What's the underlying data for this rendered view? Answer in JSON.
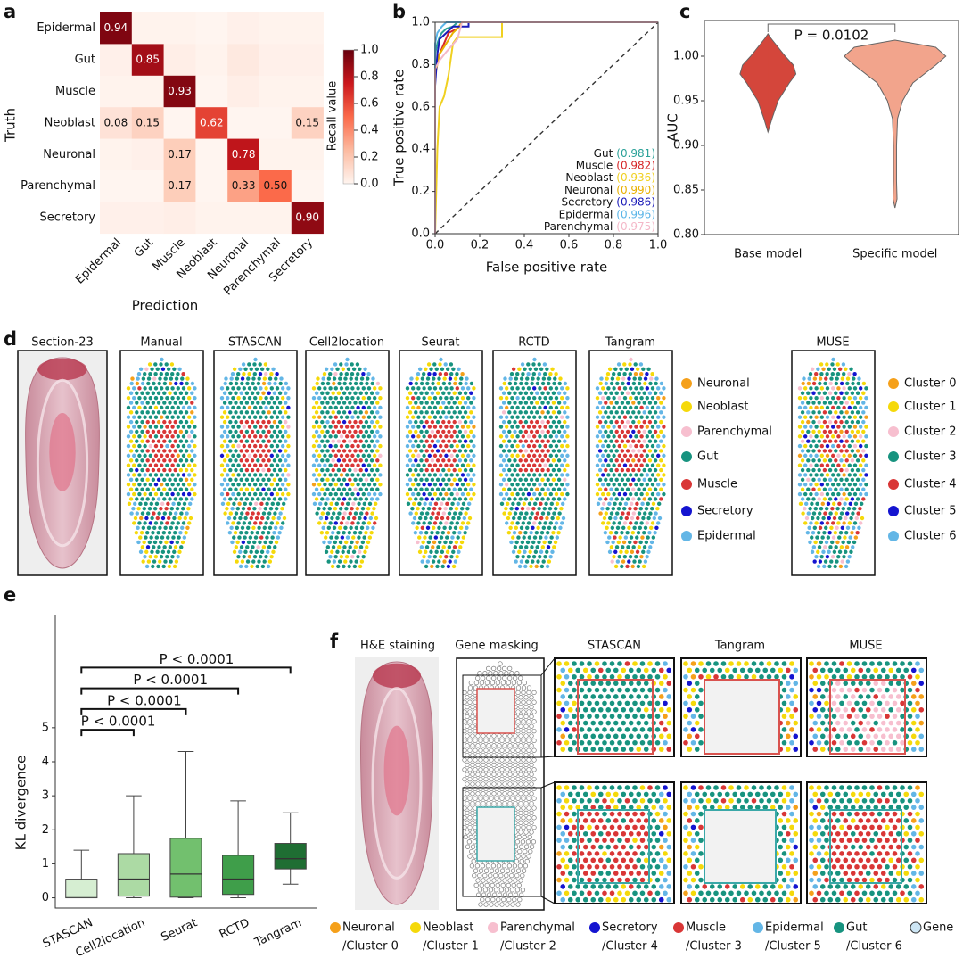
{
  "chart_data": [
    {
      "type": "heatmap",
      "panel": "a",
      "rows": [
        "Epidermal",
        "Gut",
        "Muscle",
        "Neoblast",
        "Neuronal",
        "Parenchymal",
        "Secretory"
      ],
      "columns": [
        "Epidermal",
        "Gut",
        "Muscle",
        "Neoblast",
        "Neuronal",
        "Parenchymal",
        "Secretory"
      ],
      "values": [
        [
          0.94,
          0.01,
          0.01,
          0,
          0.02,
          0.01,
          0.01
        ],
        [
          0.02,
          0.85,
          0.03,
          0.01,
          0.05,
          0.02,
          0.02
        ],
        [
          0.01,
          0.01,
          0.93,
          0,
          0.03,
          0.01,
          0.01
        ],
        [
          0.08,
          0.15,
          0,
          0.62,
          0,
          0,
          0.15
        ],
        [
          0.01,
          0.02,
          0.17,
          0,
          0.78,
          0.01,
          0.01
        ],
        [
          0,
          0,
          0.17,
          0,
          0.33,
          0.5,
          0
        ],
        [
          0.02,
          0.02,
          0.03,
          0.01,
          0.01,
          0.01,
          0.9
        ]
      ],
      "value_labels": [
        [
          "0.94",
          null,
          null,
          null,
          null,
          null,
          null
        ],
        [
          null,
          "0.85",
          null,
          null,
          null,
          null,
          null
        ],
        [
          null,
          null,
          "0.93",
          null,
          null,
          null,
          null
        ],
        [
          "0.08",
          "0.15",
          null,
          "0.62",
          null,
          null,
          "0.15"
        ],
        [
          null,
          null,
          "0.17",
          null,
          "0.78",
          null,
          null
        ],
        [
          null,
          null,
          "0.17",
          null,
          "0.33",
          "0.50",
          null
        ],
        [
          null,
          null,
          null,
          null,
          null,
          null,
          "0.90"
        ]
      ],
      "xlabel": "Prediction",
      "ylabel": "Truth",
      "colorbar_label": "Recall value",
      "clim": [
        0,
        1
      ],
      "colormap": [
        "#fff5f0",
        "#fcbba1",
        "#fb6a4a",
        "#cb181d",
        "#67000d"
      ],
      "cticks": [
        {
          "value": 0,
          "label": "0.0"
        },
        0.2,
        0.4,
        0.6,
        0.8,
        {
          "value": 1,
          "label": "1.0"
        }
      ]
    },
    {
      "type": "roc",
      "panel": "b",
      "xlabel": "False positive rate",
      "ylabel": "True positive rate",
      "xlim": [
        0,
        1
      ],
      "ylim": [
        0,
        1
      ],
      "xticks": [
        {
          "value": 0,
          "label": "0.0"
        },
        0.2,
        0.4,
        0.6,
        0.8,
        {
          "value": 1,
          "label": "1.0"
        }
      ],
      "yticks": [
        {
          "value": 0,
          "label": "0.0"
        },
        0.2,
        0.4,
        0.6,
        0.8,
        {
          "value": 1,
          "label": "1.0"
        }
      ],
      "legend": "lower right",
      "series": [
        {
          "name": "Gut",
          "auc": 0.981,
          "auc_label": "(0.981)",
          "color": "#2aa198",
          "x": [
            0,
            0,
            0.01,
            0.02,
            0.03,
            0.05,
            0.08,
            0.1,
            1
          ],
          "y": [
            0,
            0.85,
            0.9,
            0.93,
            0.95,
            0.97,
            0.98,
            1,
            1
          ]
        },
        {
          "name": "Muscle",
          "auc": 0.982,
          "auc_label": "(0.982)",
          "color": "#d62728",
          "x": [
            0,
            0,
            0.02,
            0.04,
            0.06,
            0.1,
            0.12,
            1
          ],
          "y": [
            0,
            0.8,
            0.85,
            0.9,
            0.95,
            0.97,
            1,
            1
          ]
        },
        {
          "name": "Neoblast",
          "auc": 0.936,
          "auc_label": "(0.936)",
          "color": "#f0d020",
          "x": [
            0,
            0.005,
            0.01,
            0.02,
            0.04,
            0.06,
            0.08,
            0.1,
            0.3,
            0.3,
            1
          ],
          "y": [
            0,
            0.2,
            0.4,
            0.6,
            0.65,
            0.75,
            0.9,
            0.93,
            0.93,
            1,
            1
          ]
        },
        {
          "name": "Neuronal",
          "auc": 0.99,
          "auc_label": "(0.990)",
          "color": "#e8b000",
          "x": [
            0,
            0,
            0.02,
            0.05,
            0.08,
            0.1,
            0.12,
            1
          ],
          "y": [
            0,
            0.75,
            0.85,
            0.9,
            0.95,
            0.97,
            1,
            1
          ]
        },
        {
          "name": "Secretory",
          "auc": 0.986,
          "auc_label": "(0.986)",
          "color": "#1a1ab8",
          "x": [
            0,
            0,
            0.01,
            0.02,
            0.05,
            0.08,
            0.15,
            0.15,
            1
          ],
          "y": [
            0,
            0.7,
            0.85,
            0.92,
            0.95,
            0.98,
            0.98,
            1,
            1
          ]
        },
        {
          "name": "Epidermal",
          "auc": 0.996,
          "auc_label": "(0.996)",
          "color": "#5bb5e8",
          "x": [
            0,
            0,
            0.01,
            0.03,
            0.05,
            1
          ],
          "y": [
            0,
            0.9,
            0.95,
            0.98,
            1,
            1
          ]
        },
        {
          "name": "Parenchymal",
          "auc": 0.975,
          "auc_label": "(0.975)",
          "color": "#f4b8c8",
          "x": [
            0,
            0,
            0.02,
            0.05,
            0.1,
            0.12,
            1
          ],
          "y": [
            0,
            0.78,
            0.82,
            0.86,
            0.92,
            1,
            1
          ]
        }
      ]
    },
    {
      "type": "violin",
      "panel": "c",
      "ylabel": "AUC",
      "annotation": "P = 0.0102",
      "categories": [
        "Base model",
        "Specific model"
      ],
      "ylim": [
        0.8,
        1.04
      ],
      "yticks": [
        {
          "value": 0.8,
          "label": "0.80"
        },
        0.85,
        {
          "value": 0.9,
          "label": "0.90"
        },
        0.95,
        {
          "value": 1,
          "label": "1.00"
        }
      ],
      "violins": [
        {
          "name": "Base model",
          "color": "#d4463b",
          "y": [
            0.915,
            0.93,
            0.95,
            0.97,
            0.98,
            0.99,
            1.0,
            1.01,
            1.02,
            1.025
          ],
          "density": [
            0,
            0.08,
            0.2,
            0.42,
            0.55,
            0.5,
            0.34,
            0.2,
            0.06,
            0
          ]
        },
        {
          "name": "Specific model",
          "color": "#f2a48c",
          "y": [
            0.83,
            0.84,
            0.86,
            0.9,
            0.93,
            0.95,
            0.97,
            0.99,
            1.0,
            1.01,
            1.018
          ],
          "density": [
            0,
            0.04,
            0.03,
            0.03,
            0.05,
            0.15,
            0.35,
            0.8,
            1.0,
            0.8,
            0
          ]
        }
      ]
    },
    {
      "type": "box",
      "panel": "e",
      "ylabel": "KL divergence",
      "categories": [
        "STASCAN",
        "Cell2location",
        "Seurat",
        "RCTD",
        "Tangram"
      ],
      "ylim": [
        -0.3,
        8.3
      ],
      "yticks": [
        0,
        1,
        2,
        3,
        4,
        5
      ],
      "boxes": [
        {
          "min": 0,
          "q1": 0,
          "median": 0.05,
          "q3": 0.55,
          "max": 1.4,
          "color": "#d6eed2"
        },
        {
          "min": 0,
          "q1": 0.05,
          "median": 0.55,
          "q3": 1.3,
          "max": 3.0,
          "color": "#acdaa4"
        },
        {
          "min": 0,
          "q1": 0.02,
          "median": 0.7,
          "q3": 1.75,
          "max": 4.3,
          "color": "#72c06e"
        },
        {
          "min": 0,
          "q1": 0.1,
          "median": 0.55,
          "q3": 1.25,
          "max": 2.85,
          "color": "#3f9e4a"
        },
        {
          "min": 0.4,
          "q1": 0.85,
          "median": 1.15,
          "q3": 1.6,
          "max": 2.5,
          "color": "#1f6e33"
        }
      ],
      "significance": [
        "P < 0.0001",
        "P < 0.0001",
        "P < 0.0001",
        "P < 0.0001"
      ]
    }
  ],
  "spatial": {
    "panel": "d",
    "image_title": "Section-23",
    "titles": [
      "Manual",
      "STASCAN",
      "Cell2location",
      "Seurat",
      "RCTD",
      "Tangram",
      "MUSE"
    ],
    "cell_types": [
      {
        "name": "Neuronal",
        "color": "#f5a01a"
      },
      {
        "name": "Neoblast",
        "color": "#f5d90a"
      },
      {
        "name": "Parenchymal",
        "color": "#f7bfcf"
      },
      {
        "name": "Gut",
        "color": "#17937f"
      },
      {
        "name": "Muscle",
        "color": "#d93636"
      },
      {
        "name": "Secretory",
        "color": "#1414d0"
      },
      {
        "name": "Epidermal",
        "color": "#63b6e6"
      }
    ],
    "clusters": [
      {
        "name": "Cluster 0",
        "color": "#f5a01a"
      },
      {
        "name": "Cluster 1",
        "color": "#f5d90a"
      },
      {
        "name": "Cluster 2",
        "color": "#f7bfcf"
      },
      {
        "name": "Cluster 3",
        "color": "#17937f"
      },
      {
        "name": "Cluster 4",
        "color": "#d93636"
      },
      {
        "name": "Cluster 5",
        "color": "#1414d0"
      },
      {
        "name": "Cluster 6",
        "color": "#63b6e6"
      }
    ]
  },
  "masking": {
    "panel": "f",
    "titles": [
      "H&E staining",
      "Gene masking",
      "STASCAN",
      "Tangram",
      "MUSE"
    ],
    "legend": [
      {
        "name": "Neuronal",
        "cluster": "/Cluster 0",
        "color": "#f5a01a"
      },
      {
        "name": "Neoblast",
        "cluster": "/Cluster 1",
        "color": "#f5d90a"
      },
      {
        "name": "Parenchymal",
        "cluster": "/Cluster 2",
        "color": "#f7bfcf"
      },
      {
        "name": "Secretory",
        "cluster": "/Cluster 4",
        "color": "#1414d0"
      },
      {
        "name": "Muscle",
        "cluster": "/Cluster 3",
        "color": "#d93636"
      },
      {
        "name": "Epidermal",
        "cluster": "/Cluster 5",
        "color": "#63b6e6"
      },
      {
        "name": "Gut",
        "cluster": "/Cluster 6",
        "color": "#17937f"
      },
      {
        "name": "Gene",
        "color": "#cde6f5"
      }
    ]
  }
}
